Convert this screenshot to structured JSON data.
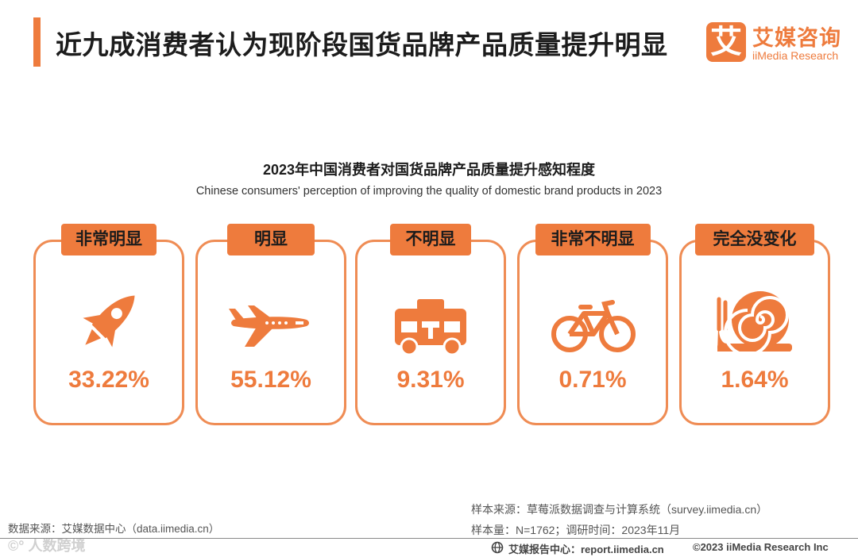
{
  "header": {
    "title": "近九成消费者认为现阶段国货品牌产品质量提升明显"
  },
  "logo": {
    "mark": "艾",
    "name_cn": "艾媒咨询",
    "name_en": "iiMedia Research"
  },
  "chart_data": {
    "type": "bar",
    "title": "2023年中国消费者对国货品牌产品质量提升感知程度",
    "subtitle": "Chinese consumers' perception of improving the quality of domestic brand products in 2023",
    "categories": [
      "非常明显",
      "明显",
      "不明显",
      "非常不明显",
      "完全没变化"
    ],
    "values": [
      33.22,
      55.12,
      9.31,
      0.71,
      1.64
    ],
    "value_labels": [
      "33.22%",
      "55.12%",
      "9.31%",
      "0.71%",
      "1.64%"
    ],
    "icons": [
      "rocket-icon",
      "airplane-icon",
      "bus-icon",
      "bicycle-icon",
      "snail-icon"
    ],
    "unit": "%"
  },
  "colors": {
    "accent": "#ee7b3d",
    "card_border": "#ef8c54"
  },
  "footer": {
    "data_source": "数据来源：艾媒数据中心（data.iimedia.cn）",
    "watermark": "©° 人数跨境",
    "sample_source": "样本来源：草莓派数据调查与计算系统（survey.iimedia.cn）",
    "sample_size": "样本量：N=1762；调研时间：2023年11月",
    "report_center": "艾媒报告中心：report.iimedia.cn",
    "copyright": "©2023  iiMedia Research  Inc"
  }
}
